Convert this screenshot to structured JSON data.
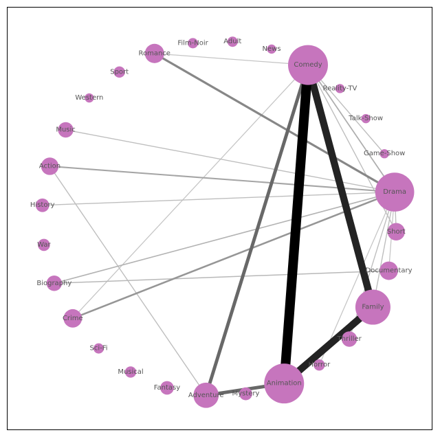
{
  "graph": {
    "colors": {
      "node": "#c675bd",
      "label": "#555555",
      "frame": "#000000"
    },
    "nodes": [
      {
        "id": "Comedy",
        "label": "Comedy",
        "degree": 100
      },
      {
        "id": "Reality-TV",
        "label": "Reality-TV",
        "degree": 2
      },
      {
        "id": "Talk-Show",
        "label": "Talk-Show",
        "degree": 2
      },
      {
        "id": "Game-Show",
        "label": "Game-Show",
        "degree": 2
      },
      {
        "id": "Drama",
        "label": "Drama",
        "degree": 95
      },
      {
        "id": "Short",
        "label": "Short",
        "degree": 14
      },
      {
        "id": "Documentary",
        "label": "Documentary",
        "degree": 16
      },
      {
        "id": "Family",
        "label": "Family",
        "degree": 75
      },
      {
        "id": "Thriller",
        "label": "Thriller",
        "degree": 10
      },
      {
        "id": "Horror",
        "label": "Horror",
        "degree": 4
      },
      {
        "id": "Animation",
        "label": "Animation",
        "degree": 100
      },
      {
        "id": "Mystery",
        "label": "Mystery",
        "degree": 6
      },
      {
        "id": "Adventure",
        "label": "Adventure",
        "degree": 35
      },
      {
        "id": "Fantasy",
        "label": "Fantasy",
        "degree": 7
      },
      {
        "id": "Musical",
        "label": "Musical",
        "degree": 4
      },
      {
        "id": "Sci-Fi",
        "label": "Sci-Fi",
        "degree": 3
      },
      {
        "id": "Crime",
        "label": "Crime",
        "degree": 16
      },
      {
        "id": "Biography",
        "label": "Biography",
        "degree": 10
      },
      {
        "id": "War",
        "label": "War",
        "degree": 5
      },
      {
        "id": "History",
        "label": "History",
        "degree": 7
      },
      {
        "id": "Action",
        "label": "Action",
        "degree": 14
      },
      {
        "id": "Music",
        "label": "Music",
        "degree": 10
      },
      {
        "id": "Western",
        "label": "Western",
        "degree": 2
      },
      {
        "id": "Sport",
        "label": "Sport",
        "degree": 4
      },
      {
        "id": "Romance",
        "label": "Romance",
        "degree": 18
      },
      {
        "id": "Film-Noir",
        "label": "Film-Noir",
        "degree": 3
      },
      {
        "id": "Adult",
        "label": "Adult",
        "degree": 3
      },
      {
        "id": "News",
        "label": "News",
        "degree": 2
      }
    ],
    "edges": [
      {
        "source": "Comedy",
        "target": "Animation",
        "weight": 1.0
      },
      {
        "source": "Comedy",
        "target": "Family",
        "weight": 0.72
      },
      {
        "source": "Family",
        "target": "Animation",
        "weight": 0.72
      },
      {
        "source": "Comedy",
        "target": "Adventure",
        "weight": 0.3
      },
      {
        "source": "Adventure",
        "target": "Animation",
        "weight": 0.3
      },
      {
        "source": "Romance",
        "target": "Drama",
        "weight": 0.17
      },
      {
        "source": "Crime",
        "target": "Drama",
        "weight": 0.12
      },
      {
        "source": "Action",
        "target": "Drama",
        "weight": 0.08
      },
      {
        "source": "Comedy",
        "target": "Drama",
        "weight": 0.06
      },
      {
        "source": "Biography",
        "target": "Drama",
        "weight": 0.05
      },
      {
        "source": "Biography",
        "target": "Documentary",
        "weight": 0.04
      },
      {
        "source": "History",
        "target": "Drama",
        "weight": 0.03
      },
      {
        "source": "Music",
        "target": "Drama",
        "weight": 0.03
      },
      {
        "source": "Comedy",
        "target": "Game-Show",
        "weight": 0.03
      },
      {
        "source": "Comedy",
        "target": "Short",
        "weight": 0.03
      },
      {
        "source": "Drama",
        "target": "Thriller",
        "weight": 0.03
      },
      {
        "source": "Drama",
        "target": "Short",
        "weight": 0.03
      },
      {
        "source": "Drama",
        "target": "Family",
        "weight": 0.03
      },
      {
        "source": "Action",
        "target": "Adventure",
        "weight": 0.03
      },
      {
        "source": "Comedy",
        "target": "Romance",
        "weight": 0.02
      },
      {
        "source": "Comedy",
        "target": "Crime",
        "weight": 0.02
      },
      {
        "source": "Drama",
        "target": "Documentary",
        "weight": 0.02
      },
      {
        "source": "Drama",
        "target": "Horror",
        "weight": 0.02
      }
    ]
  }
}
